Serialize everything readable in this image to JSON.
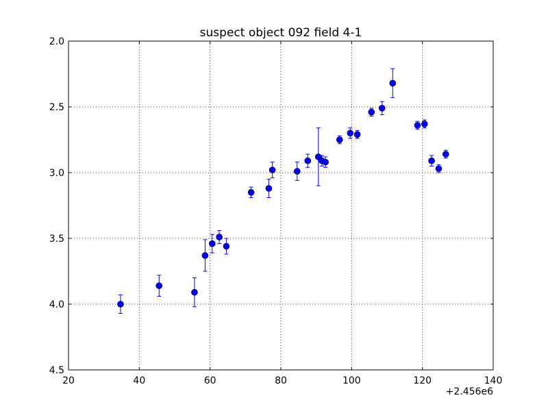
{
  "chart_data": {
    "type": "scatter",
    "title": "suspect object 092 field 4-1",
    "xlabel": "",
    "ylabel": "",
    "xlim": [
      20,
      140
    ],
    "ylim": [
      2.0,
      4.5
    ],
    "y_inverted": true,
    "x_offset_label": "+2.456e6",
    "x_ticks": [
      20,
      40,
      60,
      80,
      100,
      120,
      140
    ],
    "x_tick_labels": [
      "20",
      "40",
      "60",
      "80",
      "100",
      "120",
      "140"
    ],
    "y_ticks": [
      2.0,
      2.5,
      3.0,
      3.5,
      4.0,
      4.5
    ],
    "y_tick_labels": [
      "2.0",
      "2.5",
      "3.0",
      "3.5",
      "4.0",
      "4.5"
    ],
    "grid": true,
    "marker_color": "#0000ff",
    "points": [
      {
        "x": 34.7,
        "y": 4.0,
        "err": 0.07
      },
      {
        "x": 45.6,
        "y": 3.86,
        "err": 0.08
      },
      {
        "x": 55.6,
        "y": 3.91,
        "err": 0.11
      },
      {
        "x": 58.6,
        "y": 3.63,
        "err": 0.12
      },
      {
        "x": 60.6,
        "y": 3.54,
        "err": 0.07
      },
      {
        "x": 62.6,
        "y": 3.49,
        "err": 0.05
      },
      {
        "x": 64.6,
        "y": 3.56,
        "err": 0.06
      },
      {
        "x": 71.6,
        "y": 3.15,
        "err": 0.04
      },
      {
        "x": 76.6,
        "y": 3.12,
        "err": 0.07
      },
      {
        "x": 77.6,
        "y": 2.98,
        "err": 0.06
      },
      {
        "x": 84.6,
        "y": 2.99,
        "err": 0.07
      },
      {
        "x": 87.6,
        "y": 2.91,
        "err": 0.05
      },
      {
        "x": 90.6,
        "y": 2.88,
        "err": 0.22
      },
      {
        "x": 91.6,
        "y": 2.91,
        "err": 0.04
      },
      {
        "x": 92.6,
        "y": 2.92,
        "err": 0.04
      },
      {
        "x": 96.6,
        "y": 2.75,
        "err": 0.03
      },
      {
        "x": 99.6,
        "y": 2.7,
        "err": 0.04
      },
      {
        "x": 101.6,
        "y": 2.71,
        "err": 0.03
      },
      {
        "x": 105.6,
        "y": 2.54,
        "err": 0.03
      },
      {
        "x": 108.6,
        "y": 2.51,
        "err": 0.05
      },
      {
        "x": 111.6,
        "y": 2.32,
        "err": 0.11
      },
      {
        "x": 118.6,
        "y": 2.64,
        "err": 0.03
      },
      {
        "x": 120.6,
        "y": 2.63,
        "err": 0.03
      },
      {
        "x": 122.6,
        "y": 2.91,
        "err": 0.04
      },
      {
        "x": 124.6,
        "y": 2.97,
        "err": 0.03
      },
      {
        "x": 126.6,
        "y": 2.86,
        "err": 0.03
      }
    ]
  }
}
